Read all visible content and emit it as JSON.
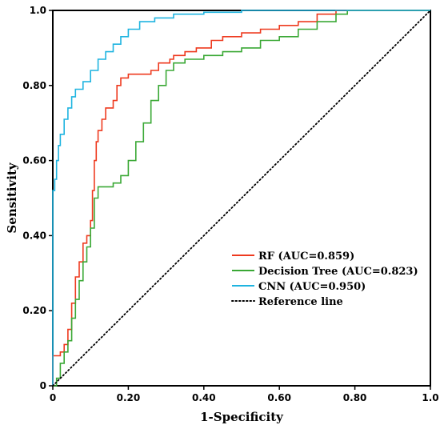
{
  "chart_data": {
    "type": "line",
    "title": "",
    "xlabel": "1-Specificity",
    "ylabel": "Sensitivity",
    "xlim": [
      0,
      1
    ],
    "ylim": [
      0,
      1
    ],
    "x_ticks": [
      "0",
      "0.20",
      "0.40",
      "0.60",
      "0.80",
      "1.0"
    ],
    "y_ticks": [
      "0",
      "0.20",
      "0.40",
      "0.60",
      "0.80",
      "1.0"
    ],
    "grid": false,
    "legend_position": "bottom-right",
    "series": [
      {
        "name": "RF (AUC=0.859)",
        "color": "#ee3a1f",
        "style": "solid",
        "points": [
          [
            0,
            0
          ],
          [
            0,
            0.08
          ],
          [
            0.02,
            0.09
          ],
          [
            0.03,
            0.11
          ],
          [
            0.04,
            0.15
          ],
          [
            0.05,
            0.22
          ],
          [
            0.06,
            0.29
          ],
          [
            0.07,
            0.33
          ],
          [
            0.08,
            0.38
          ],
          [
            0.09,
            0.4
          ],
          [
            0.1,
            0.44
          ],
          [
            0.105,
            0.52
          ],
          [
            0.11,
            0.6
          ],
          [
            0.115,
            0.65
          ],
          [
            0.12,
            0.68
          ],
          [
            0.13,
            0.71
          ],
          [
            0.14,
            0.74
          ],
          [
            0.16,
            0.76
          ],
          [
            0.17,
            0.8
          ],
          [
            0.18,
            0.82
          ],
          [
            0.2,
            0.83
          ],
          [
            0.24,
            0.83
          ],
          [
            0.26,
            0.84
          ],
          [
            0.28,
            0.86
          ],
          [
            0.31,
            0.87
          ],
          [
            0.32,
            0.88
          ],
          [
            0.35,
            0.89
          ],
          [
            0.38,
            0.9
          ],
          [
            0.42,
            0.92
          ],
          [
            0.45,
            0.93
          ],
          [
            0.5,
            0.94
          ],
          [
            0.55,
            0.95
          ],
          [
            0.6,
            0.96
          ],
          [
            0.65,
            0.97
          ],
          [
            0.7,
            0.99
          ],
          [
            0.75,
            1.0
          ],
          [
            1.0,
            1.0
          ]
        ]
      },
      {
        "name": "Decision Tree (AUC=0.823)",
        "color": "#3aa835",
        "style": "solid",
        "points": [
          [
            0,
            0
          ],
          [
            0.01,
            0.02
          ],
          [
            0.02,
            0.06
          ],
          [
            0.03,
            0.09
          ],
          [
            0.04,
            0.12
          ],
          [
            0.05,
            0.18
          ],
          [
            0.06,
            0.23
          ],
          [
            0.07,
            0.28
          ],
          [
            0.08,
            0.33
          ],
          [
            0.09,
            0.37
          ],
          [
            0.1,
            0.42
          ],
          [
            0.11,
            0.5
          ],
          [
            0.12,
            0.53
          ],
          [
            0.14,
            0.53
          ],
          [
            0.16,
            0.54
          ],
          [
            0.18,
            0.56
          ],
          [
            0.2,
            0.6
          ],
          [
            0.22,
            0.65
          ],
          [
            0.24,
            0.7
          ],
          [
            0.26,
            0.76
          ],
          [
            0.28,
            0.8
          ],
          [
            0.3,
            0.84
          ],
          [
            0.32,
            0.86
          ],
          [
            0.35,
            0.87
          ],
          [
            0.4,
            0.88
          ],
          [
            0.45,
            0.89
          ],
          [
            0.5,
            0.9
          ],
          [
            0.55,
            0.92
          ],
          [
            0.6,
            0.93
          ],
          [
            0.65,
            0.95
          ],
          [
            0.7,
            0.97
          ],
          [
            0.75,
            0.99
          ],
          [
            0.78,
            1.0
          ],
          [
            1.0,
            1.0
          ]
        ]
      },
      {
        "name": "CNN (AUC=0.950)",
        "color": "#1fb4e0",
        "style": "solid",
        "points": [
          [
            0,
            0
          ],
          [
            0,
            0.52
          ],
          [
            0.005,
            0.55
          ],
          [
            0.01,
            0.6
          ],
          [
            0.015,
            0.64
          ],
          [
            0.02,
            0.67
          ],
          [
            0.03,
            0.71
          ],
          [
            0.04,
            0.74
          ],
          [
            0.05,
            0.77
          ],
          [
            0.06,
            0.79
          ],
          [
            0.08,
            0.81
          ],
          [
            0.1,
            0.84
          ],
          [
            0.12,
            0.87
          ],
          [
            0.14,
            0.89
          ],
          [
            0.16,
            0.91
          ],
          [
            0.18,
            0.93
          ],
          [
            0.2,
            0.95
          ],
          [
            0.23,
            0.97
          ],
          [
            0.27,
            0.98
          ],
          [
            0.32,
            0.99
          ],
          [
            0.4,
            0.995
          ],
          [
            0.5,
            1.0
          ],
          [
            1.0,
            1.0
          ]
        ]
      },
      {
        "name": "Reference line",
        "color": "#000000",
        "style": "dotted",
        "points": [
          [
            0,
            0
          ],
          [
            1,
            1
          ]
        ]
      }
    ]
  }
}
